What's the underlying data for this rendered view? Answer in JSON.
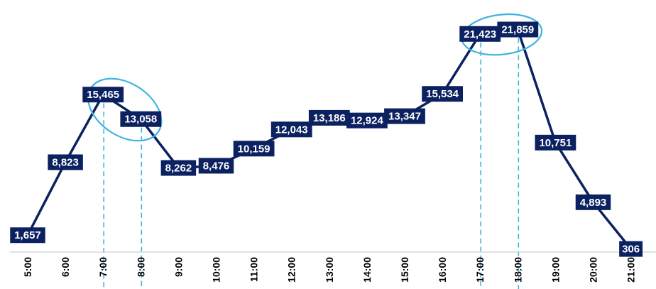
{
  "chart_data": {
    "type": "line",
    "title": "",
    "xlabel": "",
    "ylabel": "",
    "categories": [
      "5:00",
      "6:00",
      "7:00",
      "8:00",
      "9:00",
      "10:00",
      "11:00",
      "12:00",
      "13:00",
      "14:00",
      "15:00",
      "16:00",
      "17:00",
      "18:00",
      "19:00",
      "20:00",
      "21:00"
    ],
    "values": [
      1657,
      8823,
      15465,
      13058,
      8262,
      8476,
      10159,
      12043,
      13186,
      12924,
      13347,
      15534,
      21423,
      21859,
      10751,
      4893,
      306
    ],
    "labels": [
      "1,657",
      "8,823",
      "15,465",
      "13,058",
      "8,262",
      "8,476",
      "10,159",
      "12,043",
      "13,186",
      "12,924",
      "13,347",
      "15,534",
      "21,423",
      "21,859",
      "10,751",
      "4,893",
      "306"
    ],
    "ylim": [
      0,
      23500
    ],
    "grid": false,
    "legend": "none",
    "highlights": [
      {
        "type": "ellipse",
        "categories": [
          "7:00",
          "8:00"
        ]
      },
      {
        "type": "ellipse",
        "categories": [
          "17:00",
          "18:00"
        ]
      }
    ],
    "reference_lines": [
      "7:00",
      "8:00",
      "17:00",
      "18:00"
    ],
    "colors": {
      "line": "#0b2160",
      "label_bg": "#0b2160",
      "label_text": "#ffffff",
      "highlight": "#3cb4e0",
      "axis": "#d9d9d9"
    }
  }
}
